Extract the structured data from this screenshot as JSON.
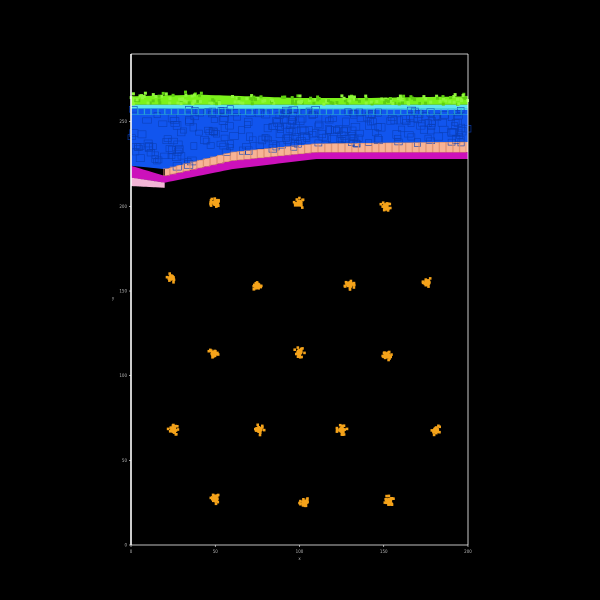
{
  "chart_data": {
    "type": "scatter",
    "title": "",
    "xlabel": "x",
    "ylabel": "y",
    "xlim": [
      0,
      200
    ],
    "ylim": [
      0,
      290
    ],
    "x_ticks": [
      0,
      50,
      100,
      150,
      200
    ],
    "y_ticks": [
      0,
      50,
      100,
      150,
      200,
      250
    ],
    "grid": false,
    "background_color": "#000000",
    "axis_color": "#ffffff",
    "layers": [
      {
        "name": "green-top",
        "color": "#7cf21b",
        "bottom": [
          [
            0,
            260
          ],
          [
            200,
            260
          ]
        ],
        "top": [
          [
            0,
            265
          ],
          [
            40,
            266
          ],
          [
            100,
            264
          ],
          [
            140,
            264
          ],
          [
            200,
            265
          ]
        ]
      },
      {
        "name": "cyan",
        "color": "#5ee3f0",
        "bottom": [
          [
            0,
            252
          ],
          [
            200,
            252
          ]
        ],
        "top": [
          [
            0,
            260
          ],
          [
            200,
            260
          ]
        ]
      },
      {
        "name": "blue",
        "color": "#1155ee",
        "bottom": [
          [
            0,
            224
          ],
          [
            20,
            222
          ],
          [
            60,
            232
          ],
          [
            110,
            237
          ],
          [
            200,
            238
          ]
        ],
        "top": [
          [
            0,
            258
          ],
          [
            200,
            257
          ]
        ]
      },
      {
        "name": "peach",
        "color": "#f7b395",
        "bottom": [
          [
            20,
            218
          ],
          [
            60,
            227
          ],
          [
            110,
            232
          ],
          [
            200,
            232
          ]
        ],
        "top": [
          [
            20,
            222
          ],
          [
            60,
            232
          ],
          [
            110,
            237
          ],
          [
            200,
            238
          ]
        ]
      },
      {
        "name": "magenta",
        "color": "#cc11bb",
        "bottom": [
          [
            0,
            217
          ],
          [
            20,
            214
          ],
          [
            60,
            222
          ],
          [
            110,
            228
          ],
          [
            200,
            228
          ]
        ],
        "top": [
          [
            0,
            224
          ],
          [
            20,
            218
          ],
          [
            60,
            227
          ],
          [
            110,
            232
          ],
          [
            200,
            232
          ]
        ]
      },
      {
        "name": "pink-base",
        "color": "#f2b5d6",
        "bottom": [
          [
            0,
            212
          ],
          [
            20,
            211
          ],
          [
            20,
            211
          ]
        ],
        "top": [
          [
            0,
            217
          ],
          [
            20,
            214
          ],
          [
            20,
            214
          ]
        ]
      }
    ],
    "inclusions": {
      "color": "#f5a31a",
      "points": [
        {
          "x": 50,
          "y": 202
        },
        {
          "x": 100,
          "y": 202
        },
        {
          "x": 151,
          "y": 200
        },
        {
          "x": 24,
          "y": 158
        },
        {
          "x": 75,
          "y": 153
        },
        {
          "x": 130,
          "y": 154
        },
        {
          "x": 176,
          "y": 155
        },
        {
          "x": 49,
          "y": 113
        },
        {
          "x": 100,
          "y": 114
        },
        {
          "x": 152,
          "y": 112
        },
        {
          "x": 25,
          "y": 68
        },
        {
          "x": 76,
          "y": 68
        },
        {
          "x": 125,
          "y": 68
        },
        {
          "x": 181,
          "y": 68
        },
        {
          "x": 50,
          "y": 27
        },
        {
          "x": 103,
          "y": 25
        },
        {
          "x": 153,
          "y": 26
        }
      ]
    }
  }
}
